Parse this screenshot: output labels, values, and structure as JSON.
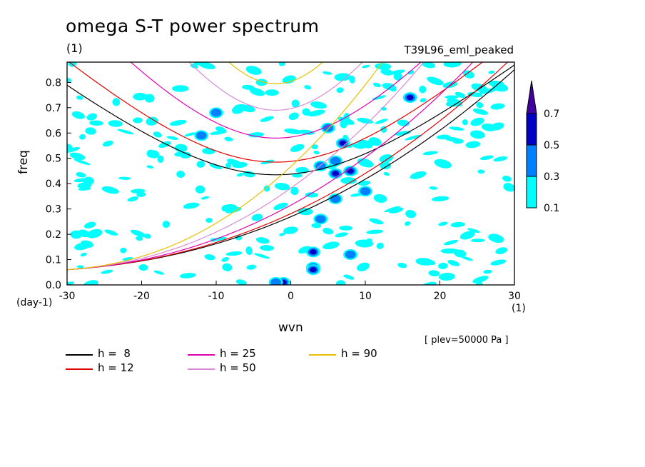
{
  "title": "omega S-T power spectrum",
  "subtitle_unit": "(1)",
  "run_label": "T39L96_eml_peaked",
  "pressure_label": "[ plev=50000 Pa ]",
  "chart_data": {
    "type": "heatmap",
    "xlabel": "wvn",
    "ylabel": "freq",
    "x_unit": "(1)",
    "y_unit": "(day-1)",
    "xlim": [
      -30,
      30
    ],
    "ylim": [
      0,
      0.88
    ],
    "x_ticks": [
      "-30",
      "-20",
      "-10",
      "0",
      "10",
      "20",
      "30"
    ],
    "y_ticks": [
      "0.0",
      "0.1",
      "0.2",
      "0.3",
      "0.4",
      "0.5",
      "0.6",
      "0.7",
      "0.8"
    ],
    "colorbar": {
      "levels": [
        "0.1",
        "0.3",
        "0.5",
        "0.7"
      ],
      "colors": [
        "#00ffff",
        "#0080ff",
        "#0000c0",
        "#4000a0"
      ]
    },
    "dispersion_curves": [
      {
        "label": "h =  8",
        "h": 8,
        "color": "#000000"
      },
      {
        "label": "h = 12",
        "h": 12,
        "color": "#e00000"
      },
      {
        "label": "h = 25",
        "h": 25,
        "color": "#e000b0"
      },
      {
        "label": "h = 50",
        "h": 50,
        "color": "#d88ad8"
      },
      {
        "label": "h = 90",
        "h": 90,
        "color": "#e8c000"
      }
    ],
    "power_blobs": [
      {
        "x": 3,
        "y": 0.07,
        "level": 3
      },
      {
        "x": 3,
        "y": 0.06,
        "level": 2
      },
      {
        "x": -1,
        "y": 0.01,
        "level": 2
      },
      {
        "x": -2,
        "y": 0.01,
        "level": 1
      },
      {
        "x": 3,
        "y": 0.13,
        "level": 2
      },
      {
        "x": 4,
        "y": 0.26,
        "level": 1
      },
      {
        "x": 5,
        "y": 0.62,
        "level": 1
      },
      {
        "x": 7,
        "y": 0.56,
        "level": 2
      },
      {
        "x": 6,
        "y": 0.49,
        "level": 1
      },
      {
        "x": 6,
        "y": 0.44,
        "level": 2
      },
      {
        "x": 8,
        "y": 0.45,
        "level": 2
      },
      {
        "x": 16,
        "y": 0.74,
        "level": 2
      },
      {
        "x": -12,
        "y": 0.59,
        "level": 1
      },
      {
        "x": -10,
        "y": 0.68,
        "level": 1
      },
      {
        "x": 4,
        "y": 0.47,
        "level": 1
      },
      {
        "x": 8,
        "y": 0.12,
        "level": 1
      },
      {
        "x": 6,
        "y": 0.34,
        "level": 1
      },
      {
        "x": 10,
        "y": 0.37,
        "level": 1
      }
    ]
  }
}
